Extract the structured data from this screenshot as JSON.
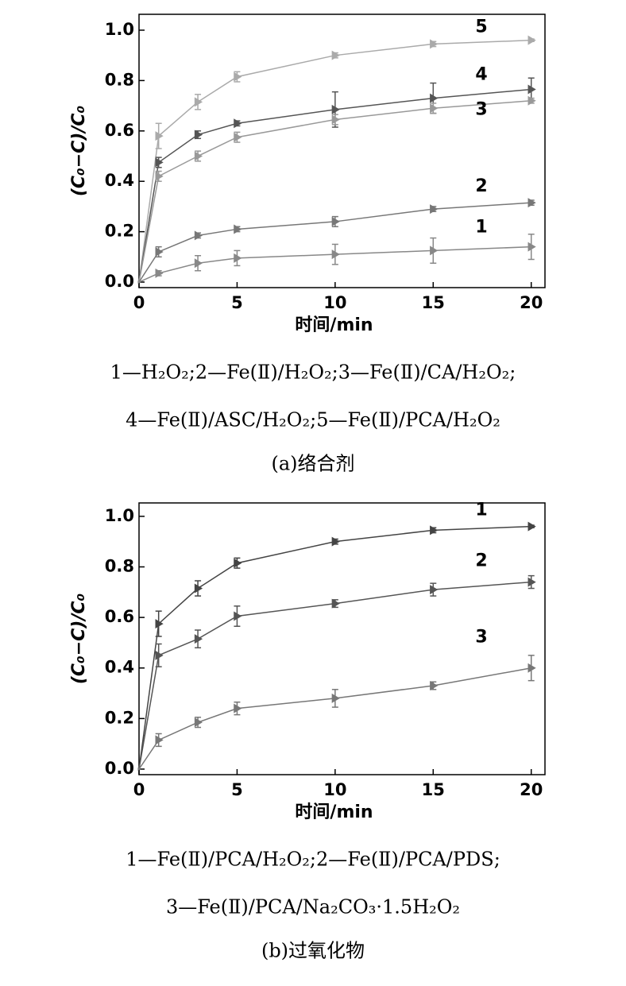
{
  "chart_data": [
    {
      "type": "line",
      "x_label": "时间/min",
      "y_label": "(C₀−C)/C₀",
      "x": [
        0,
        1,
        3,
        5,
        10,
        15,
        20
      ],
      "xlim": [
        0,
        20.7
      ],
      "ylim": [
        -0.022,
        1.063
      ],
      "xticks": [
        0,
        5,
        10,
        15,
        20
      ],
      "yticks": [
        {
          "value": 0,
          "label": "0.0"
        },
        0.2,
        0.4,
        0.6,
        0.8,
        {
          "value": 1,
          "label": "1.0"
        }
      ],
      "series": [
        {
          "name": "5",
          "color": "#aaaaaa",
          "values": [
            0,
            0.58,
            0.715,
            0.815,
            0.9,
            0.945,
            0.96
          ],
          "errors": [
            0,
            0.05,
            0.03,
            0.02,
            0.01,
            0.01,
            0.005
          ]
        },
        {
          "name": "4",
          "color": "#555555",
          "values": [
            0,
            0.475,
            0.585,
            0.63,
            0.685,
            0.73,
            0.765
          ],
          "errors": [
            0,
            0.02,
            0.015,
            0.01,
            0.07,
            0.06,
            0.045
          ]
        },
        {
          "name": "3",
          "color": "#999999",
          "values": [
            0,
            0.42,
            0.5,
            0.575,
            0.645,
            0.69,
            0.72
          ],
          "errors": [
            0,
            0.02,
            0.02,
            0.02,
            0.02,
            0.02,
            0.01
          ]
        },
        {
          "name": "2",
          "color": "#777777",
          "values": [
            0,
            0.12,
            0.185,
            0.21,
            0.24,
            0.29,
            0.315
          ],
          "errors": [
            0,
            0.02,
            0.01,
            0.01,
            0.02,
            0.01,
            0.01
          ]
        },
        {
          "name": "1",
          "color": "#888888",
          "values": [
            0,
            0.035,
            0.075,
            0.095,
            0.11,
            0.125,
            0.14
          ],
          "errors": [
            0,
            0.01,
            0.03,
            0.03,
            0.04,
            0.05,
            0.05
          ]
        }
      ],
      "legend_lines": [
        "1—H₂O₂;2—Fe(Ⅱ)/H₂O₂;3—Fe(Ⅱ)/CA/H₂O₂;",
        "4—Fe(Ⅱ)/ASC/H₂O₂;5—Fe(Ⅱ)/PCA/H₂O₂"
      ],
      "caption": "(a)络合剂"
    },
    {
      "type": "line",
      "x_label": "时间/min",
      "y_label": "(C₀−C)/C₀",
      "x": [
        0,
        1,
        3,
        5,
        10,
        15,
        20
      ],
      "xlim": [
        0,
        20.7
      ],
      "ylim": [
        -0.022,
        1.053
      ],
      "xticks": [
        0,
        5,
        10,
        15,
        20
      ],
      "yticks": [
        {
          "value": 0,
          "label": "0.0"
        },
        0.2,
        0.4,
        0.6,
        0.8,
        {
          "value": 1,
          "label": "1.0"
        }
      ],
      "series": [
        {
          "name": "1",
          "color": "#444444",
          "values": [
            0,
            0.575,
            0.715,
            0.815,
            0.9,
            0.945,
            0.96
          ],
          "errors": [
            0,
            0.05,
            0.03,
            0.02,
            0.01,
            0.01,
            0.005
          ]
        },
        {
          "name": "2",
          "color": "#555555",
          "values": [
            0,
            0.45,
            0.515,
            0.605,
            0.655,
            0.71,
            0.74
          ],
          "errors": [
            0,
            0.045,
            0.035,
            0.04,
            0.015,
            0.025,
            0.025
          ]
        },
        {
          "name": "3",
          "color": "#777777",
          "values": [
            0,
            0.115,
            0.185,
            0.24,
            0.28,
            0.33,
            0.4
          ],
          "errors": [
            0,
            0.025,
            0.02,
            0.025,
            0.035,
            0.015,
            0.05
          ]
        }
      ],
      "legend_lines": [
        "1—Fe(Ⅱ)/PCA/H₂O₂;2—Fe(Ⅱ)/PCA/PDS;",
        "3—Fe(Ⅱ)/PCA/Na₂CO₃·1.5H₂O₂"
      ],
      "caption": "(b)过氧化物"
    }
  ]
}
